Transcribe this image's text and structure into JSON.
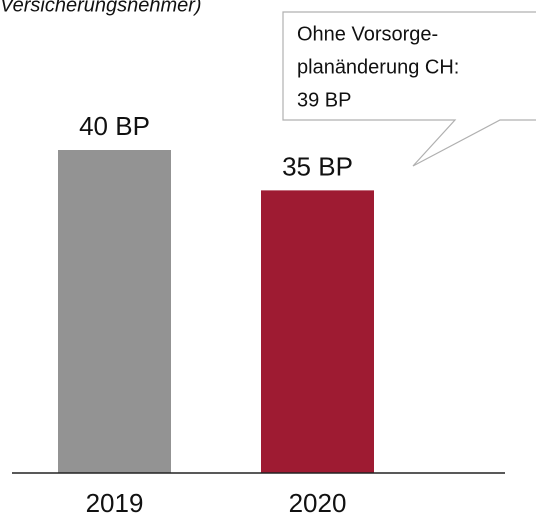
{
  "chart_data": {
    "type": "bar",
    "title": "Versicherungsnehmer)",
    "categories": [
      "2019",
      "2020"
    ],
    "values": [
      40,
      35
    ],
    "value_labels": [
      "40 BP",
      "35 BP"
    ],
    "colors": [
      "#939393",
      "#9e1b32"
    ],
    "ylim": [
      0,
      40
    ],
    "annotation": [
      "Ohne Vorsorge-",
      "planänderung CH:",
      "39 BP"
    ]
  }
}
